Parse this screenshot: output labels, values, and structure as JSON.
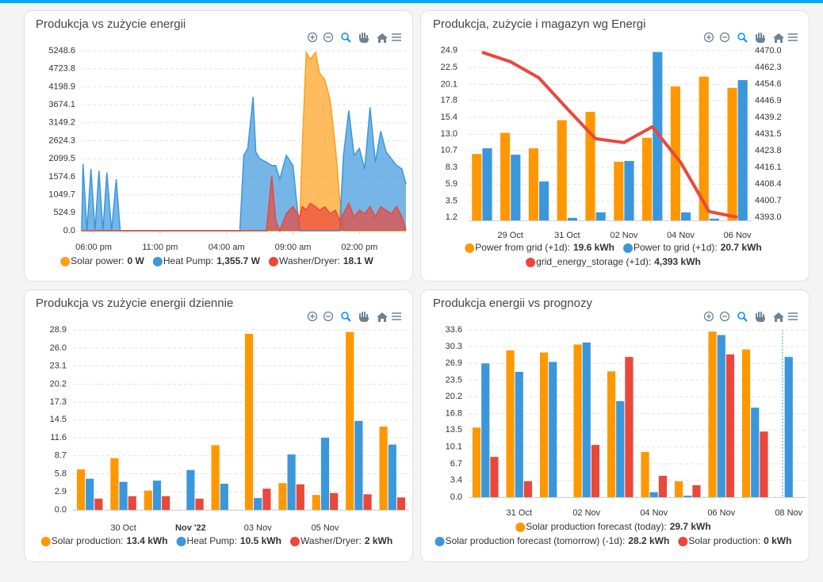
{
  "chart_data": [
    {
      "type": "area",
      "title": "Produkcja vs zużycie energii",
      "x": [
        17.1,
        17.2,
        17.5,
        17.8,
        18.1,
        18.4,
        18.7,
        19.0,
        19.35,
        19.7,
        20.0,
        20.5,
        29.0,
        29.3,
        29.6,
        30.0,
        30.2,
        30.5,
        31.0,
        31.4,
        31.7,
        32.0,
        32.5,
        33.0,
        33.5,
        33.7,
        34.0,
        34.3,
        34.7,
        35.0,
        35.4,
        35.8,
        36.2,
        36.5,
        36.8,
        37.2,
        37.6,
        38.0,
        38.4,
        38.8,
        39.2,
        39.6,
        40.0,
        40.4,
        40.8,
        41.2,
        41.5
      ],
      "xlim": [
        17.1,
        41.5
      ],
      "xticks": [
        {
          "value": 18,
          "label": "06:00 pm"
        },
        {
          "value": 23,
          "label": "11:00 pm"
        },
        {
          "value": 28,
          "label": "04:00 am"
        },
        {
          "value": 33,
          "label": "09:00 am"
        },
        {
          "value": 38,
          "label": "02:00 pm"
        }
      ],
      "ylim": [
        0,
        5248.6
      ],
      "yticks": [
        {
          "value": 0,
          "label": "0.0"
        },
        524.9,
        1049.7,
        1574.6,
        2099.5,
        2624.3,
        3149.2,
        3674.1,
        4198.9,
        4723.8,
        5248.6
      ],
      "grid": true,
      "series": [
        {
          "name": "Solar power:",
          "legend_value": "0 W",
          "color": "#ff9f1a",
          "values": [
            0,
            0,
            0,
            0,
            0,
            0,
            0,
            0,
            0,
            0,
            0,
            0,
            0,
            0,
            0,
            0,
            0,
            0,
            0,
            0,
            0,
            0,
            0,
            0,
            0,
            2500,
            5200,
            5000,
            5200,
            4600,
            4400,
            3800,
            2400,
            1000,
            0,
            0,
            0,
            0,
            0,
            0,
            0,
            0,
            0,
            0,
            0,
            0,
            0
          ]
        },
        {
          "name": "Heat Pump:",
          "legend_value": "1,355.7 W",
          "color": "#3b97dc",
          "values": [
            0,
            1950,
            0,
            1800,
            0,
            1750,
            0,
            1700,
            0,
            1500,
            0,
            0,
            0,
            2200,
            2400,
            3900,
            2300,
            2100,
            2000,
            1900,
            1900,
            1500,
            2200,
            1900,
            0,
            0,
            0,
            0,
            0,
            0,
            0,
            0,
            0,
            0,
            2200,
            3500,
            2200,
            2400,
            1800,
            3600,
            2000,
            2900,
            2300,
            2100,
            1900,
            1800,
            1355.7
          ]
        },
        {
          "name": "Washer/Dryer:",
          "legend_value": "18.1 W",
          "color": "#e9483b",
          "values": [
            0,
            0,
            0,
            0,
            0,
            0,
            0,
            0,
            0,
            0,
            0,
            0,
            0,
            0,
            0,
            0,
            0,
            0,
            0,
            1600,
            300,
            0,
            500,
            700,
            400,
            700,
            600,
            800,
            700,
            600,
            700,
            500,
            600,
            300,
            500,
            800,
            400,
            600,
            500,
            700,
            400,
            700,
            600,
            500,
            700,
            400,
            18.1
          ]
        }
      ]
    },
    {
      "type": "bar",
      "title": "Produkcja, zużycie i magazyn wg Energi",
      "categories": [
        null,
        "29 Oct",
        null,
        "31 Oct",
        null,
        "02 Nov",
        null,
        "04 Nov",
        null,
        "06 Nov"
      ],
      "ylim": [
        0.75,
        25.1
      ],
      "yticks": [
        1.2,
        3.5,
        5.9,
        8.3,
        10.7,
        {
          "value": 13,
          "label": "13.0"
        },
        15.4,
        17.8,
        20.1,
        22.5,
        24.9
      ],
      "y2lim": [
        4391.5,
        4470.7
      ],
      "y2ticks": [
        {
          "value": 4393,
          "label": "4393.0"
        },
        4400.7,
        4408.4,
        4416.1,
        4423.8,
        4431.5,
        4439.2,
        4446.9,
        4454.6,
        4462.3,
        {
          "value": 4470,
          "label": "4470.0"
        }
      ],
      "grid": true,
      "series": [
        {
          "name": "Power from grid (+1d):",
          "legend_value": "19.6 kWh",
          "color": "#ff9800",
          "values": [
            10.2,
            13.2,
            11.0,
            15.0,
            16.2,
            9.1,
            12.5,
            19.8,
            21.2,
            19.6
          ]
        },
        {
          "name": "Power to grid (+1d):",
          "legend_value": "20.7 kWh",
          "color": "#3b97dc",
          "values": [
            11.0,
            10.1,
            6.3,
            1.1,
            1.9,
            9.2,
            24.7,
            1.9,
            1.0,
            20.7
          ]
        },
        {
          "name": "grid_energy_storage (+1d):",
          "legend_value": "4,393 kWh",
          "color": "#e9483b",
          "type": "line",
          "axis": "y2",
          "values": [
            4469.3,
            4464.9,
            4457.5,
            4443.2,
            4429.3,
            4427.5,
            4434.8,
            4418.3,
            4395.6,
            4393
          ]
        }
      ]
    },
    {
      "type": "bar",
      "title": "Produkcja vs zużycie energii dziennie",
      "categories": [
        null,
        "30 Oct",
        null,
        "Nov '22",
        null,
        "03 Nov",
        null,
        "05 Nov",
        null,
        null
      ],
      "ylim": [
        0,
        29.7
      ],
      "yticks": [
        {
          "value": 0,
          "label": "0.0"
        },
        2.9,
        5.8,
        8.7,
        11.6,
        14.5,
        17.3,
        20.2,
        23.1,
        {
          "value": 26,
          "label": "26.0"
        },
        28.9
      ],
      "grid": true,
      "series": [
        {
          "name": "Solar production:",
          "legend_value": "13.4 kWh",
          "color": "#ff9800",
          "values": [
            6.5,
            8.3,
            3.1,
            null,
            10.4,
            28.3,
            4.3,
            2.4,
            28.6,
            13.4
          ]
        },
        {
          "name": "Heat Pump:",
          "legend_value": "10.5 kWh",
          "color": "#3b97dc",
          "values": [
            5.0,
            4.5,
            4.7,
            6.4,
            4.2,
            1.9,
            8.9,
            11.6,
            14.3,
            10.5
          ]
        },
        {
          "name": "Washer/Dryer:",
          "legend_value": "2 kWh",
          "color": "#e9483b",
          "values": [
            1.8,
            2.2,
            2.2,
            1.8,
            null,
            3.4,
            4.1,
            2.7,
            2.5,
            2
          ]
        }
      ]
    },
    {
      "type": "bar",
      "title": "Produkcja energii vs prognozy",
      "categories": [
        null,
        "31 Oct",
        null,
        "02 Nov",
        null,
        "04 Nov",
        null,
        "06 Nov",
        null,
        "08 Nov"
      ],
      "ylim": [
        0,
        34.6
      ],
      "yticks": [
        {
          "value": 0,
          "label": "0.0"
        },
        3.4,
        6.7,
        10.1,
        13.5,
        16.8,
        20.2,
        23.5,
        26.9,
        30.3,
        33.6
      ],
      "grid": true,
      "series": [
        {
          "name": "Solar production forecast (today):",
          "legend_value": "29.7 kWh",
          "color": "#ff9800",
          "values": [
            14.0,
            29.5,
            29.1,
            30.7,
            25.3,
            9.1,
            3.2,
            33.3,
            29.7,
            null
          ]
        },
        {
          "name": "Solar production forecast (tomorrow) (-1d):",
          "legend_value": "28.2 kWh",
          "color": "#3b97dc",
          "values": [
            26.9,
            25.2,
            27.2,
            31.1,
            19.3,
            1.0,
            0.3,
            32.6,
            18.0,
            28.2
          ]
        },
        {
          "name": "Solar production:",
          "legend_value": "0 kWh",
          "color": "#e9483b",
          "values": [
            8.1,
            3.2,
            null,
            10.5,
            28.2,
            4.3,
            2.4,
            28.7,
            13.2,
            null
          ]
        }
      ]
    }
  ]
}
